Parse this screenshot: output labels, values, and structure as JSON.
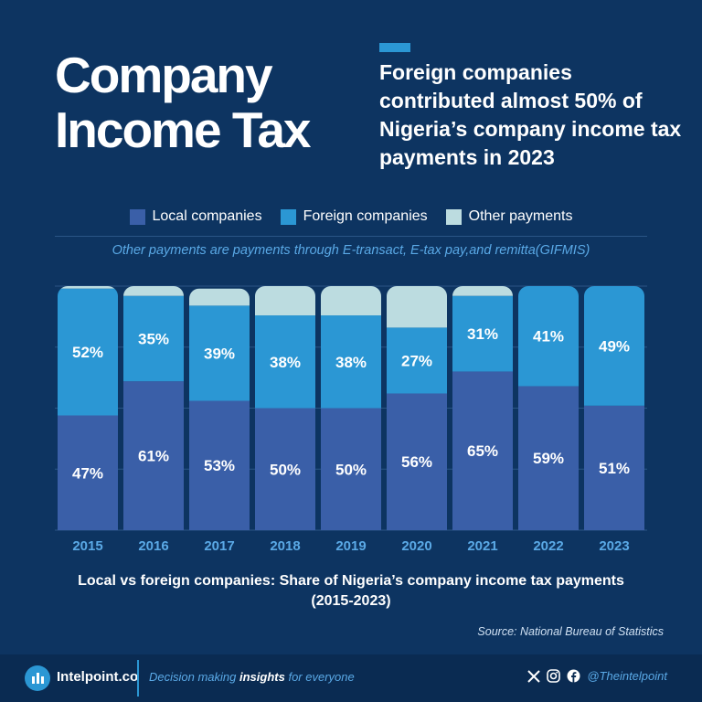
{
  "header": {
    "title_line1": "Company",
    "title_line2": "Income Tax",
    "subtitle": "Foreign companies contributed almost 50% of Nigeria’s company income tax payments in 2023"
  },
  "note": "Other payments are payments through E-transact, E-tax pay,and remitta(GIFMIS)",
  "chart_data": {
    "type": "bar",
    "stacked": true,
    "categories": [
      "2015",
      "2016",
      "2017",
      "2018",
      "2019",
      "2020",
      "2021",
      "2022",
      "2023"
    ],
    "series": [
      {
        "name": "Local companies",
        "color": "#3a5fa8",
        "values": [
          47,
          61,
          53,
          50,
          50,
          56,
          65,
          59,
          51
        ]
      },
      {
        "name": "Foreign companies",
        "color": "#2b97d4",
        "values": [
          52,
          35,
          39,
          38,
          38,
          27,
          31,
          41,
          49
        ]
      },
      {
        "name": "Other payments",
        "color": "#bcdce0",
        "values": [
          1,
          4,
          7,
          12,
          12,
          17,
          4,
          0,
          0
        ]
      }
    ],
    "data_labels": {
      "Local companies": [
        "47%",
        "61%",
        "53%",
        "50%",
        "50%",
        "56%",
        "65%",
        "59%",
        "51%"
      ],
      "Foreign companies": [
        "52%",
        "35%",
        "39%",
        "38%",
        "38%",
        "27%",
        "31%",
        "41%",
        "49%"
      ]
    },
    "ylim": [
      0,
      100
    ],
    "grid": true,
    "legend": "top-center",
    "title": "Local vs foreign companies: Share of Nigeria’s company income tax payments (2015-2023)"
  },
  "caption_line1": "Local vs foreign companies: Share of Nigeria’s company income tax payments",
  "caption_line2": "(2015-2023)",
  "source": "Source: National Bureau of Statistics",
  "footer": {
    "brand": "Intelpoint.co",
    "tagline_pre": "Decision making ",
    "tagline_bold": "insights",
    "tagline_post": " for everyone",
    "handle": "@Theintelpoint"
  },
  "colors": {
    "background": "#0d3461",
    "accent": "#2b97d4",
    "note": "#5aa9e6",
    "year_label": "#5aa9e6"
  },
  "icons": [
    "x-icon",
    "instagram-icon",
    "facebook-icon",
    "intelpoint-logo-icon"
  ]
}
